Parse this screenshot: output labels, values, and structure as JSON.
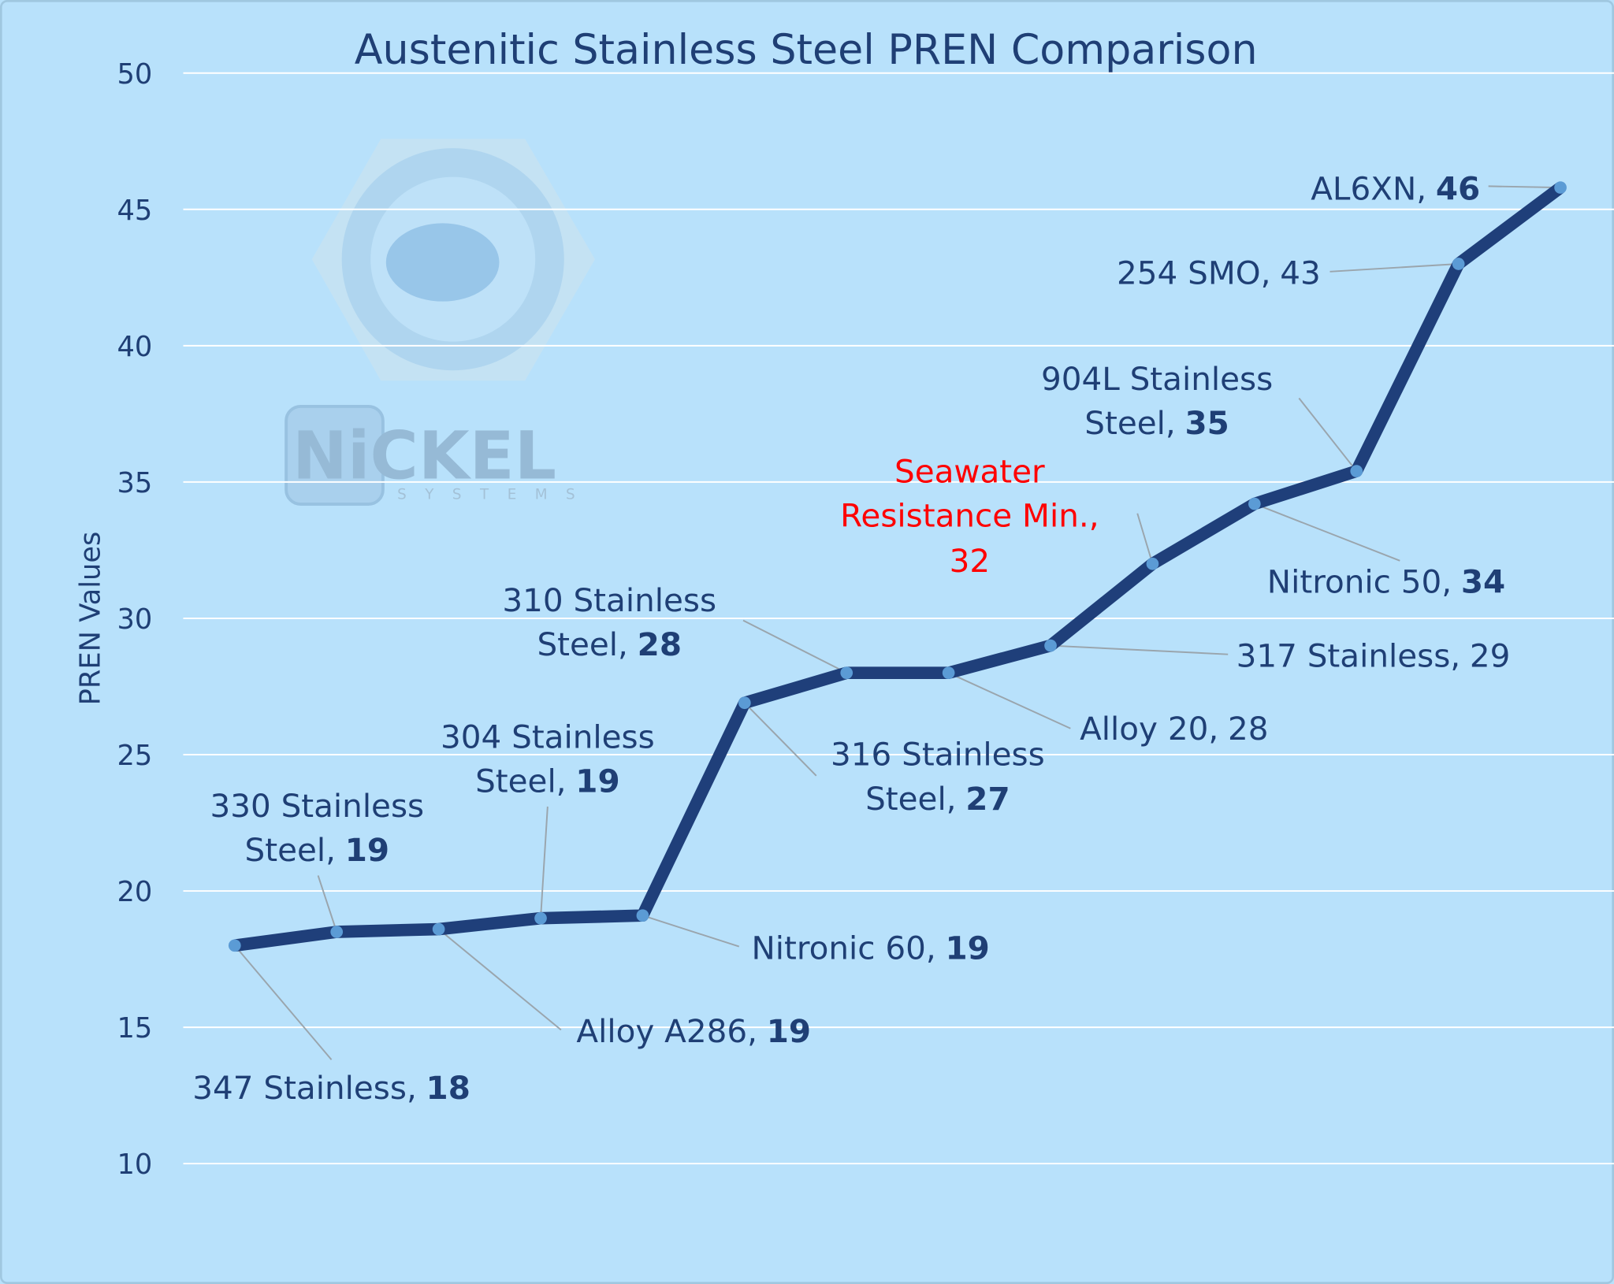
{
  "chart_data": {
    "type": "line",
    "title": "Austenitic Stainless Steel PREN Comparison",
    "y_label": "PREN Values",
    "watermark": {
      "brand": "NiCKEL",
      "sub": "SYSTEMS"
    },
    "categories": [
      "347 Stainless,",
      "330 Stainless Steel,",
      "Alloy A286,",
      "304 Stainless Steel,",
      "Nitronic 60,",
      "316 Stainless Steel,",
      "310 Stainless Steel,",
      "Alloy 20,",
      "317 Stainless,",
      "Seawater Resistance Min.,",
      "Nitronic 50,",
      "904L Stainless Steel,",
      "254 SMO,",
      "AL6XN,"
    ],
    "series": [
      {
        "name": "PREN",
        "color": "#1f3f7a",
        "marker_color": "#5b9bd5",
        "values": [
          18.0,
          18.5,
          18.6,
          19.0,
          19.1,
          26.9,
          28.0,
          28.0,
          29.0,
          32.0,
          34.2,
          35.4,
          43.0,
          45.8
        ],
        "value_labels": [
          "18",
          "19",
          "19",
          "19",
          "19",
          "27",
          "28",
          "28",
          "29",
          "32",
          "34",
          "35",
          "43",
          "46"
        ],
        "value_label_bold": [
          true,
          true,
          true,
          true,
          true,
          true,
          true,
          false,
          false,
          false,
          true,
          true,
          false,
          true
        ]
      }
    ],
    "highlight_index": 9,
    "highlight_color": "#ff0000",
    "ylim": [
      10,
      50
    ],
    "yticks": [
      10,
      15,
      20,
      25,
      30,
      35,
      40,
      45,
      50
    ],
    "grid": true
  }
}
